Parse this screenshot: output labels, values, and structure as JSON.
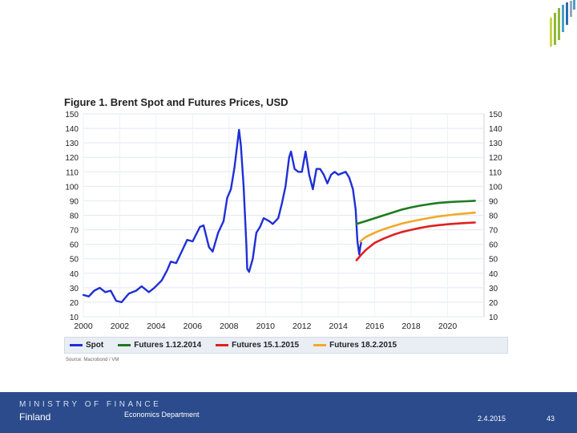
{
  "page": {
    "source": "Source: Macrobond / VM",
    "footer": {
      "ministry": "MINISTRY OF FINANCE",
      "country": "Finland",
      "department": "Economics Department",
      "date": "2.4.2015",
      "page_number": "43"
    }
  },
  "colors": {
    "spot": "#1f2fd6",
    "futures_dec": "#1f7a1f",
    "futures_jan": "#e02020",
    "futures_feb": "#f2a92a",
    "logo_palette": [
      "#c8d64a",
      "#8fb83a",
      "#4aa0c8",
      "#2b6cb0",
      "#9aa6b8"
    ]
  },
  "chart_data": {
    "type": "line",
    "title": "Figure 1. Brent Spot and Futures Prices, USD",
    "xlabel": "",
    "ylabel": "",
    "xlim": [
      2000,
      2022
    ],
    "ylim": [
      10,
      150
    ],
    "x_ticks": [
      "2000",
      "2002",
      "2004",
      "2006",
      "2008",
      "2010",
      "2012",
      "2014",
      "2016",
      "2018",
      "2020"
    ],
    "y_ticks": [
      "10",
      "20",
      "30",
      "40",
      "50",
      "60",
      "70",
      "80",
      "90",
      "100",
      "110",
      "120",
      "130",
      "140",
      "150"
    ],
    "grid": true,
    "legend_position": "bottom",
    "series": [
      {
        "name": "Spot",
        "points": [
          [
            2000.0,
            25
          ],
          [
            2000.3,
            24
          ],
          [
            2000.6,
            28
          ],
          [
            2000.9,
            30
          ],
          [
            2001.2,
            27
          ],
          [
            2001.5,
            28
          ],
          [
            2001.8,
            21
          ],
          [
            2002.1,
            20
          ],
          [
            2002.5,
            26
          ],
          [
            2002.9,
            28
          ],
          [
            2003.2,
            31
          ],
          [
            2003.6,
            27
          ],
          [
            2003.9,
            30
          ],
          [
            2004.3,
            35
          ],
          [
            2004.6,
            42
          ],
          [
            2004.8,
            48
          ],
          [
            2005.1,
            47
          ],
          [
            2005.4,
            55
          ],
          [
            2005.7,
            63
          ],
          [
            2006.0,
            62
          ],
          [
            2006.4,
            72
          ],
          [
            2006.6,
            73
          ],
          [
            2006.9,
            58
          ],
          [
            2007.1,
            55
          ],
          [
            2007.4,
            68
          ],
          [
            2007.7,
            76
          ],
          [
            2007.9,
            92
          ],
          [
            2008.1,
            98
          ],
          [
            2008.3,
            113
          ],
          [
            2008.5,
            134
          ],
          [
            2008.55,
            139
          ],
          [
            2008.65,
            128
          ],
          [
            2008.8,
            100
          ],
          [
            2008.95,
            60
          ],
          [
            2009.0,
            43
          ],
          [
            2009.1,
            41
          ],
          [
            2009.3,
            50
          ],
          [
            2009.5,
            68
          ],
          [
            2009.7,
            72
          ],
          [
            2009.9,
            78
          ],
          [
            2010.2,
            76
          ],
          [
            2010.4,
            74
          ],
          [
            2010.7,
            78
          ],
          [
            2010.9,
            88
          ],
          [
            2011.1,
            100
          ],
          [
            2011.3,
            120
          ],
          [
            2011.4,
            124
          ],
          [
            2011.6,
            112
          ],
          [
            2011.8,
            110
          ],
          [
            2012.0,
            110
          ],
          [
            2012.2,
            124
          ],
          [
            2012.4,
            108
          ],
          [
            2012.6,
            98
          ],
          [
            2012.8,
            112
          ],
          [
            2013.0,
            112
          ],
          [
            2013.2,
            108
          ],
          [
            2013.4,
            102
          ],
          [
            2013.6,
            108
          ],
          [
            2013.8,
            110
          ],
          [
            2014.0,
            108
          ],
          [
            2014.2,
            109
          ],
          [
            2014.4,
            110
          ],
          [
            2014.6,
            106
          ],
          [
            2014.8,
            98
          ],
          [
            2014.95,
            84
          ],
          [
            2015.05,
            62
          ],
          [
            2015.15,
            53
          ],
          [
            2015.2,
            58
          ],
          [
            2015.25,
            61
          ]
        ]
      },
      {
        "name": "Futures 1.12.2014",
        "points": [
          [
            2015.0,
            74
          ],
          [
            2015.5,
            76
          ],
          [
            2016.0,
            78
          ],
          [
            2016.5,
            80
          ],
          [
            2017.0,
            82
          ],
          [
            2017.5,
            84
          ],
          [
            2018.0,
            85.5
          ],
          [
            2018.5,
            86.7
          ],
          [
            2019.0,
            87.7
          ],
          [
            2019.5,
            88.5
          ],
          [
            2020.0,
            89
          ],
          [
            2020.5,
            89.4
          ],
          [
            2021.0,
            89.7
          ],
          [
            2021.5,
            90
          ]
        ]
      },
      {
        "name": "Futures 15.1.2015",
        "points": [
          [
            2015.0,
            49
          ],
          [
            2015.2,
            52
          ],
          [
            2015.5,
            56
          ],
          [
            2015.8,
            59
          ],
          [
            2016.0,
            61
          ],
          [
            2016.5,
            64
          ],
          [
            2017.0,
            66.5
          ],
          [
            2017.5,
            68.5
          ],
          [
            2018.0,
            70
          ],
          [
            2018.5,
            71.3
          ],
          [
            2019.0,
            72.4
          ],
          [
            2019.5,
            73.2
          ],
          [
            2020.0,
            73.8
          ],
          [
            2020.5,
            74.3
          ],
          [
            2021.0,
            74.7
          ],
          [
            2021.5,
            75
          ]
        ]
      },
      {
        "name": "Futures 18.2.2015",
        "points": [
          [
            2015.2,
            62
          ],
          [
            2015.5,
            65
          ],
          [
            2016.0,
            68
          ],
          [
            2016.5,
            70.5
          ],
          [
            2017.0,
            72.5
          ],
          [
            2017.5,
            74.3
          ],
          [
            2018.0,
            75.8
          ],
          [
            2018.5,
            77
          ],
          [
            2019.0,
            78.2
          ],
          [
            2019.5,
            79.2
          ],
          [
            2020.0,
            80
          ],
          [
            2020.5,
            80.7
          ],
          [
            2021.0,
            81.3
          ],
          [
            2021.5,
            81.8
          ]
        ]
      }
    ]
  }
}
